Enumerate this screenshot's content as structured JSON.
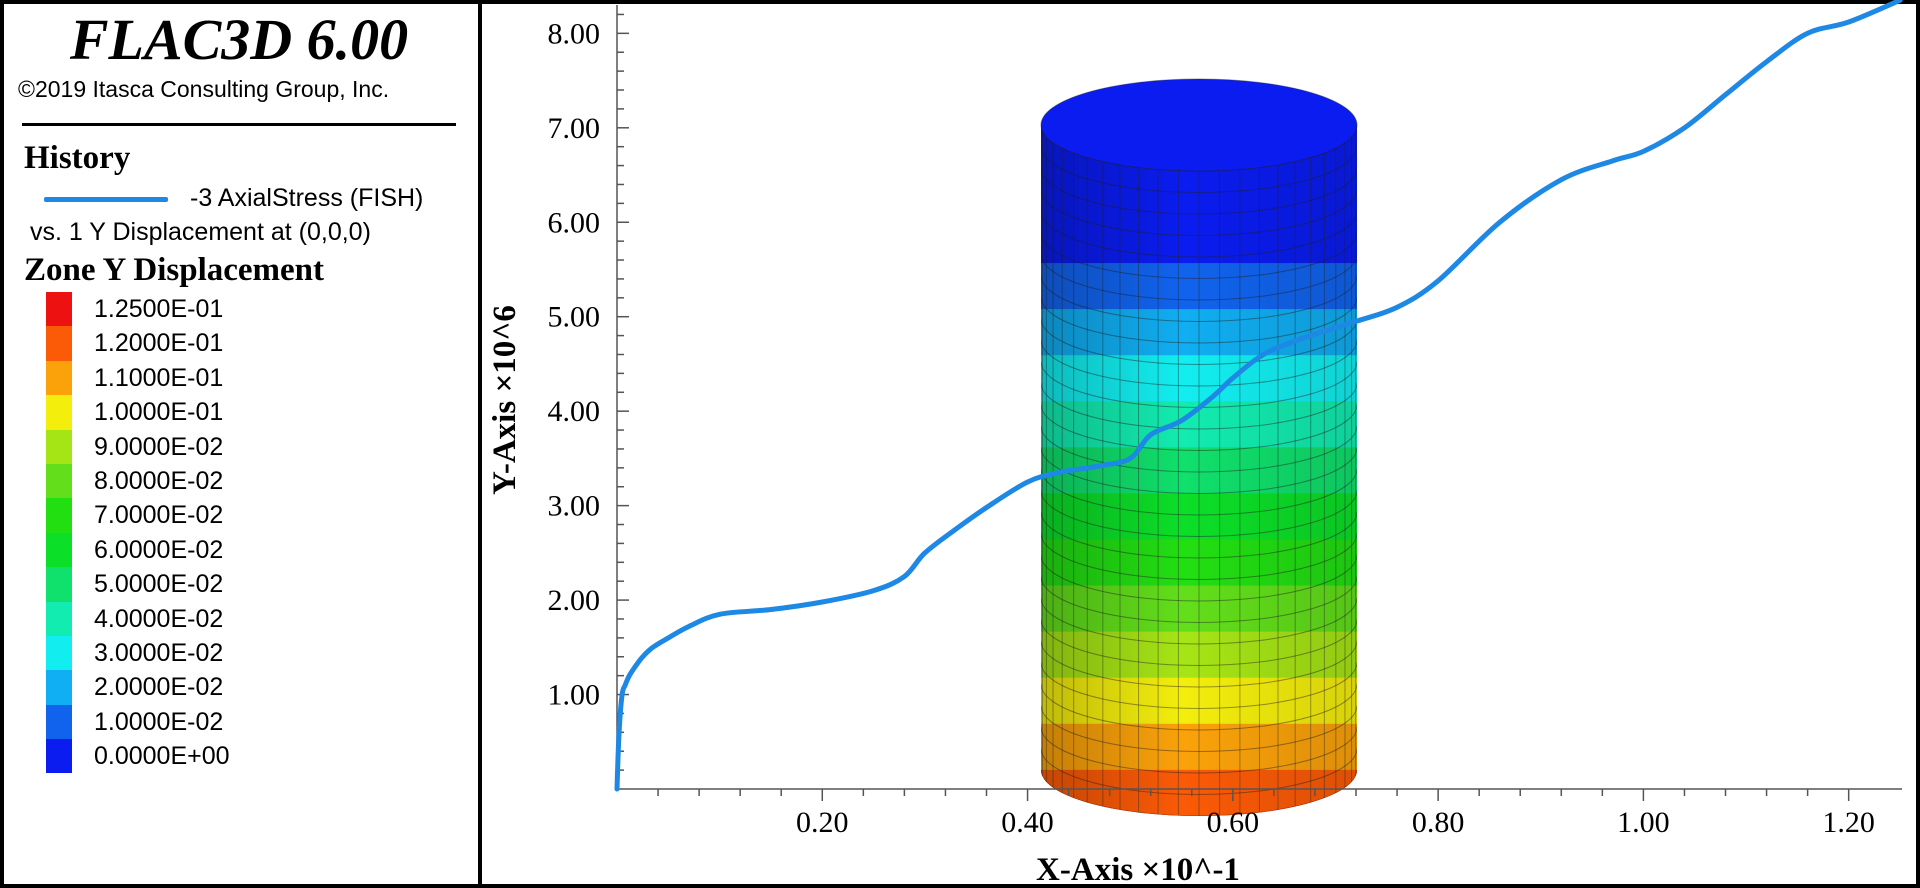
{
  "header": {
    "title": "FLAC3D 6.00",
    "copyright": "©2019 Itasca Consulting Group, Inc."
  },
  "history": {
    "heading": "History",
    "series_label": "-3 AxialStress (FISH)",
    "series_sub": "vs. 1 Y Displacement at (0,0,0)",
    "line_color": "#1e88e5"
  },
  "contour": {
    "heading": "Zone Y Displacement",
    "bands": [
      {
        "label": "1.2500E-01",
        "color": "#ee1111"
      },
      {
        "label": "1.2000E-01",
        "color": "#fb5a06"
      },
      {
        "label": "1.1000E-01",
        "color": "#fba20a"
      },
      {
        "label": "1.0000E-01",
        "color": "#f4ee0c"
      },
      {
        "label": "9.0000E-02",
        "color": "#a6e515"
      },
      {
        "label": "8.0000E-02",
        "color": "#62df1a"
      },
      {
        "label": "7.0000E-02",
        "color": "#22df12"
      },
      {
        "label": "6.0000E-02",
        "color": "#0cdf28"
      },
      {
        "label": "5.0000E-02",
        "color": "#10e06c"
      },
      {
        "label": "4.0000E-02",
        "color": "#12ecb0"
      },
      {
        "label": "3.0000E-02",
        "color": "#12eef0"
      },
      {
        "label": "2.0000E-02",
        "color": "#10aef2"
      },
      {
        "label": "1.0000E-02",
        "color": "#1163ee"
      },
      {
        "label": "0.0000E+00",
        "color": "#0a1cf0"
      }
    ]
  },
  "chart_data": {
    "type": "line",
    "xlabel": "X-Axis ×10^-1",
    "ylabel": "Y-Axis ×10^6",
    "xlim": [
      0.0,
      1.25
    ],
    "ylim": [
      0.0,
      8.3
    ],
    "xticks": [
      "0.20",
      "0.40",
      "0.60",
      "0.80",
      "1.00",
      "1.20"
    ],
    "yticks": [
      "1.00",
      "2.00",
      "3.00",
      "4.00",
      "5.00",
      "6.00",
      "7.00",
      "8.00"
    ],
    "grid": false,
    "series": [
      {
        "name": "-3 AxialStress (FISH)",
        "x": [
          0.0,
          0.002,
          0.005,
          0.008,
          0.012,
          0.018,
          0.025,
          0.035,
          0.05,
          0.07,
          0.1,
          0.15,
          0.2,
          0.25,
          0.28,
          0.3,
          0.33,
          0.36,
          0.4,
          0.43,
          0.47,
          0.5,
          0.52,
          0.55,
          0.58,
          0.6,
          0.63,
          0.67,
          0.72,
          0.76,
          0.8,
          0.86,
          0.92,
          0.97,
          1.0,
          1.04,
          1.08,
          1.12,
          1.16,
          1.2,
          1.25
        ],
        "y": [
          0.0,
          0.6,
          1.0,
          1.1,
          1.2,
          1.3,
          1.4,
          1.5,
          1.6,
          1.72,
          1.85,
          1.9,
          1.98,
          2.1,
          2.25,
          2.5,
          2.75,
          2.98,
          3.25,
          3.35,
          3.42,
          3.5,
          3.75,
          3.9,
          4.15,
          4.35,
          4.6,
          4.78,
          4.95,
          5.1,
          5.38,
          6.0,
          6.45,
          6.65,
          6.75,
          7.0,
          7.35,
          7.7,
          8.0,
          8.12,
          8.35
        ]
      }
    ]
  }
}
